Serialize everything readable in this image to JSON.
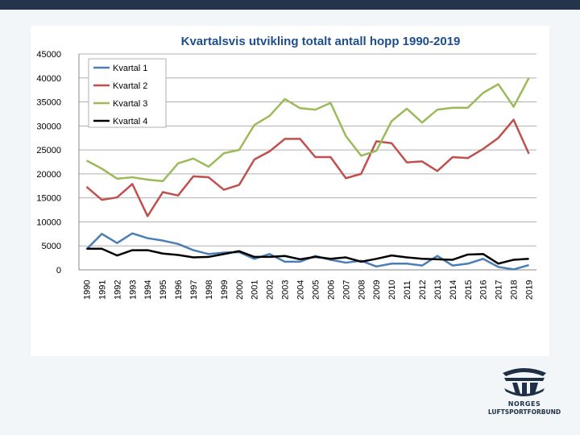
{
  "chart_data": {
    "type": "line",
    "title": "Kvartalsvis utvikling totalt antall hopp 1990-2019",
    "xlabel": "",
    "ylabel": "",
    "x": [
      "1990",
      "1991",
      "1992",
      "1993",
      "1994",
      "1995",
      "1996",
      "1997",
      "1998",
      "1999",
      "2000",
      "2001",
      "2002",
      "2003",
      "2004",
      "2005",
      "2006",
      "2007",
      "2008",
      "2009",
      "2010",
      "2011",
      "2012",
      "2013",
      "2014",
      "2015",
      "2016",
      "2017",
      "2018",
      "2019"
    ],
    "ylim": [
      0,
      45000
    ],
    "yticks": [
      "0",
      "5000",
      "10000",
      "15000",
      "20000",
      "25000",
      "30000",
      "35000",
      "40000",
      "45000"
    ],
    "grid": true,
    "legend_position": "top-left",
    "series": [
      {
        "name": "Kvartal 1",
        "color": "#4a7eb4",
        "values": [
          4300,
          7500,
          5600,
          7600,
          6600,
          6100,
          5400,
          4100,
          3300,
          3600,
          3700,
          2300,
          3300,
          1700,
          1700,
          2900,
          2100,
          1500,
          1900,
          700,
          1300,
          1300,
          900,
          2900,
          900,
          1300,
          2300,
          600,
          100,
          1000
        ]
      },
      {
        "name": "Kvartal 2",
        "color": "#c0504d",
        "values": [
          17300,
          14600,
          15100,
          17900,
          11200,
          16200,
          15500,
          19500,
          19300,
          16700,
          17700,
          23000,
          24700,
          27300,
          27300,
          23500,
          23500,
          19100,
          20000,
          26800,
          26400,
          22400,
          22600,
          20600,
          23500,
          23300,
          25200,
          27500,
          31300,
          24200
        ]
      },
      {
        "name": "Kvartal 3",
        "color": "#9bbb59",
        "values": [
          22800,
          21100,
          19000,
          19300,
          18800,
          18500,
          22200,
          23200,
          21500,
          24300,
          25000,
          30200,
          32100,
          35600,
          33700,
          33400,
          34800,
          27900,
          23800,
          24800,
          31000,
          33600,
          30700,
          33400,
          33800,
          33800,
          36900,
          38700,
          34000,
          40000
        ]
      },
      {
        "name": "Kvartal 4",
        "color": "#000000",
        "values": [
          4400,
          4400,
          3000,
          4100,
          4100,
          3400,
          3100,
          2600,
          2700,
          3300,
          3900,
          2700,
          2700,
          2900,
          2200,
          2700,
          2300,
          2600,
          1700,
          2300,
          3000,
          2600,
          2300,
          2200,
          2100,
          3200,
          3300,
          1300,
          2100,
          2300
        ]
      }
    ]
  },
  "logo": {
    "line1": "NORGES",
    "line2": "LUFTSPORTFORBUND"
  }
}
